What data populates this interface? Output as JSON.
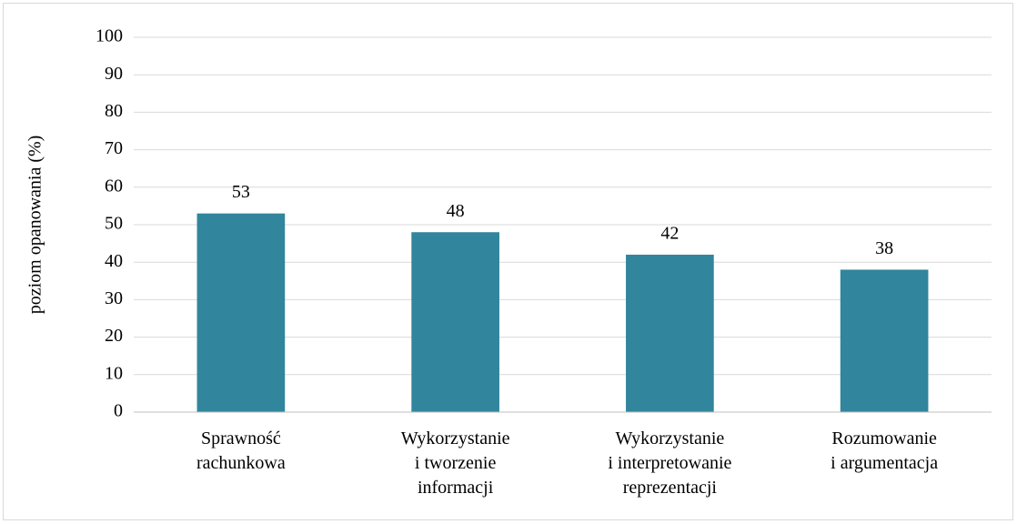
{
  "chart_data": {
    "type": "bar",
    "y_axis_label": "poziom opanowania (%)",
    "categories": [
      [
        "Sprawność",
        "rachunkowa"
      ],
      [
        "Wykorzystanie",
        "i tworzenie",
        "informacji"
      ],
      [
        "Wykorzystanie",
        "i interpretowanie",
        "reprezentacji"
      ],
      [
        "Rozumowanie",
        "i argumentacja"
      ]
    ],
    "values": [
      53,
      48,
      42,
      38
    ],
    "color": "#31859c",
    "ylim": [
      0,
      100
    ],
    "yticks": [
      0,
      10,
      20,
      30,
      40,
      50,
      60,
      70,
      80,
      90,
      100
    ],
    "grid": true
  }
}
